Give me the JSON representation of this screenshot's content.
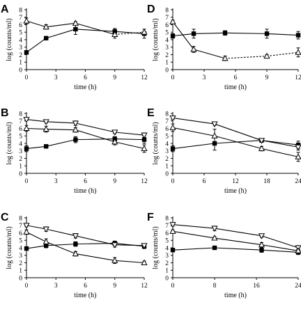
{
  "chart_data": [
    {
      "panel": "A",
      "type": "line",
      "xlabel": "time (h)",
      "ylabel": "log (counts/ml)",
      "xlim": [
        0,
        12
      ],
      "ylim": [
        0,
        8
      ],
      "xticks": [
        0,
        3,
        6,
        9,
        12
      ],
      "yticks": [
        0,
        1,
        2,
        3,
        4,
        5,
        6,
        7,
        8
      ],
      "series": [
        {
          "marker": "filled-square",
          "x": [
            0,
            2,
            5,
            9,
            12
          ],
          "y": [
            2.3,
            4.2,
            5.4,
            5.1,
            4.8
          ],
          "err": [
            0.2,
            0.15,
            0.7,
            0.4,
            0.6
          ],
          "dashed_from": null
        },
        {
          "marker": "open-triangle",
          "x": [
            0,
            2,
            5,
            9,
            12
          ],
          "y": [
            6.5,
            5.7,
            6.2,
            4.7,
            5.0
          ],
          "err": [
            0.4,
            0.3,
            0.2,
            0.5,
            0.4
          ],
          "dashed_from": 9
        }
      ]
    },
    {
      "panel": "D",
      "type": "line",
      "xlabel": "time (h)",
      "ylabel": "log (counts/ml)",
      "xlim": [
        0,
        12
      ],
      "ylim": [
        0,
        8
      ],
      "xticks": [
        0,
        3,
        6,
        9,
        12
      ],
      "yticks": [
        0,
        1,
        2,
        3,
        4,
        5,
        6,
        7,
        8
      ],
      "series": [
        {
          "marker": "filled-square",
          "x": [
            0,
            2,
            5,
            9,
            12
          ],
          "y": [
            4.5,
            4.8,
            4.9,
            4.8,
            4.6
          ],
          "err": [
            0.3,
            0.6,
            0.3,
            0.6,
            0.5
          ],
          "dashed_from": null
        },
        {
          "marker": "open-triangle",
          "x": [
            0,
            2,
            5,
            9,
            12
          ],
          "y": [
            6.4,
            2.7,
            1.5,
            1.8,
            2.3
          ],
          "err": [
            0.2,
            0.4,
            0.3,
            0.2,
            0.6
          ],
          "dashed_from": 5
        }
      ]
    },
    {
      "panel": "B",
      "type": "line",
      "xlabel": "time (h)",
      "ylabel": "log (counts/ml)",
      "xlim": [
        0,
        12
      ],
      "ylim": [
        0,
        8
      ],
      "xticks": [
        0,
        3,
        6,
        9,
        12
      ],
      "yticks": [
        0,
        1,
        2,
        3,
        4,
        5,
        6,
        7,
        8
      ],
      "series": [
        {
          "marker": "filled-square",
          "x": [
            0,
            2,
            5,
            9,
            12
          ],
          "y": [
            3.3,
            3.6,
            4.5,
            4.6,
            4.5
          ],
          "err": [
            0.4,
            0.15,
            0.4,
            0.3,
            0.5
          ],
          "dashed_from": null
        },
        {
          "marker": "open-triangle-down",
          "x": [
            0,
            2,
            5,
            9,
            12
          ],
          "y": [
            7.2,
            6.9,
            6.7,
            5.5,
            5.1
          ],
          "err": [
            0.15,
            0.2,
            0.3,
            0.2,
            0.3
          ],
          "dashed_from": null
        },
        {
          "marker": "open-triangle",
          "x": [
            0,
            2,
            5,
            9,
            12
          ],
          "y": [
            6.0,
            5.9,
            5.8,
            4.2,
            3.3
          ],
          "err": [
            0.4,
            0.4,
            0.3,
            0.4,
            0.5
          ],
          "dashed_from": null
        }
      ]
    },
    {
      "panel": "E",
      "type": "line",
      "xlabel": "time (h)",
      "ylabel": "log (counts/ml)",
      "xlim": [
        0,
        24
      ],
      "ylim": [
        0,
        8
      ],
      "xticks": [
        0,
        6,
        12,
        18,
        24
      ],
      "yticks": [
        0,
        1,
        2,
        3,
        4,
        5,
        6,
        7,
        8
      ],
      "series": [
        {
          "marker": "filled-square",
          "x": [
            0,
            8,
            17,
            24
          ],
          "y": [
            3.3,
            4.0,
            4.4,
            3.8
          ],
          "err": [
            0.4,
            0.9,
            0.2,
            0.5
          ],
          "dashed_from": null
        },
        {
          "marker": "open-triangle-down",
          "x": [
            0,
            8,
            17,
            24
          ],
          "y": [
            7.4,
            6.6,
            4.4,
            3.5
          ],
          "err": [
            0.2,
            0.2,
            0.2,
            0.4
          ],
          "dashed_from": null
        },
        {
          "marker": "open-triangle",
          "x": [
            0,
            8,
            17,
            24
          ],
          "y": [
            6.1,
            5.0,
            3.3,
            2.2
          ],
          "err": [
            0.5,
            0.9,
            0.3,
            0.6
          ],
          "dashed_from": null
        }
      ]
    },
    {
      "panel": "C",
      "type": "line",
      "xlabel": "time (h)",
      "ylabel": "log (counts/ml)",
      "xlim": [
        0,
        12
      ],
      "ylim": [
        0,
        8
      ],
      "xticks": [
        0,
        3,
        6,
        9,
        12
      ],
      "yticks": [
        0,
        1,
        2,
        3,
        4,
        5,
        6,
        7,
        8
      ],
      "series": [
        {
          "marker": "filled-square",
          "x": [
            0,
            2,
            5,
            9,
            12
          ],
          "y": [
            3.9,
            4.3,
            4.5,
            4.6,
            4.2
          ],
          "err": [
            0.2,
            0.3,
            0.3,
            0.3,
            0.3
          ],
          "dashed_from": null
        },
        {
          "marker": "open-triangle-down",
          "x": [
            0,
            2,
            5,
            9,
            12
          ],
          "y": [
            7.0,
            6.5,
            5.6,
            4.4,
            4.3
          ],
          "err": [
            0.2,
            0.3,
            0.3,
            0.3,
            0.2
          ],
          "dashed_from": null
        },
        {
          "marker": "open-triangle",
          "x": [
            0,
            2,
            5,
            9,
            12
          ],
          "y": [
            6.1,
            4.8,
            3.2,
            2.3,
            2.0
          ],
          "err": [
            0.3,
            0.4,
            0.3,
            0.4,
            0.2
          ],
          "dashed_from": null
        }
      ]
    },
    {
      "panel": "F",
      "type": "line",
      "xlabel": "time (h)",
      "ylabel": "log (counts/ml)",
      "xlim": [
        0,
        24
      ],
      "ylim": [
        0,
        8
      ],
      "xticks": [
        0,
        8,
        16,
        24
      ],
      "yticks": [
        0,
        1,
        2,
        3,
        4,
        5,
        6,
        7,
        8
      ],
      "series": [
        {
          "marker": "filled-square",
          "x": [
            0,
            8,
            17,
            24
          ],
          "y": [
            3.7,
            4.0,
            3.7,
            3.4
          ],
          "err": [
            0.2,
            0.2,
            0.3,
            0.3
          ],
          "dashed_from": null
        },
        {
          "marker": "open-triangle-down",
          "x": [
            0,
            8,
            17,
            24
          ],
          "y": [
            7.1,
            6.6,
            5.6,
            4.0
          ],
          "err": [
            0.2,
            0.3,
            0.2,
            0.3
          ],
          "dashed_from": null
        },
        {
          "marker": "open-triangle",
          "x": [
            0,
            8,
            17,
            24
          ],
          "y": [
            6.2,
            5.3,
            4.4,
            3.6
          ],
          "err": [
            0.2,
            0.2,
            0.3,
            0.2
          ],
          "dashed_from": null
        }
      ]
    }
  ]
}
